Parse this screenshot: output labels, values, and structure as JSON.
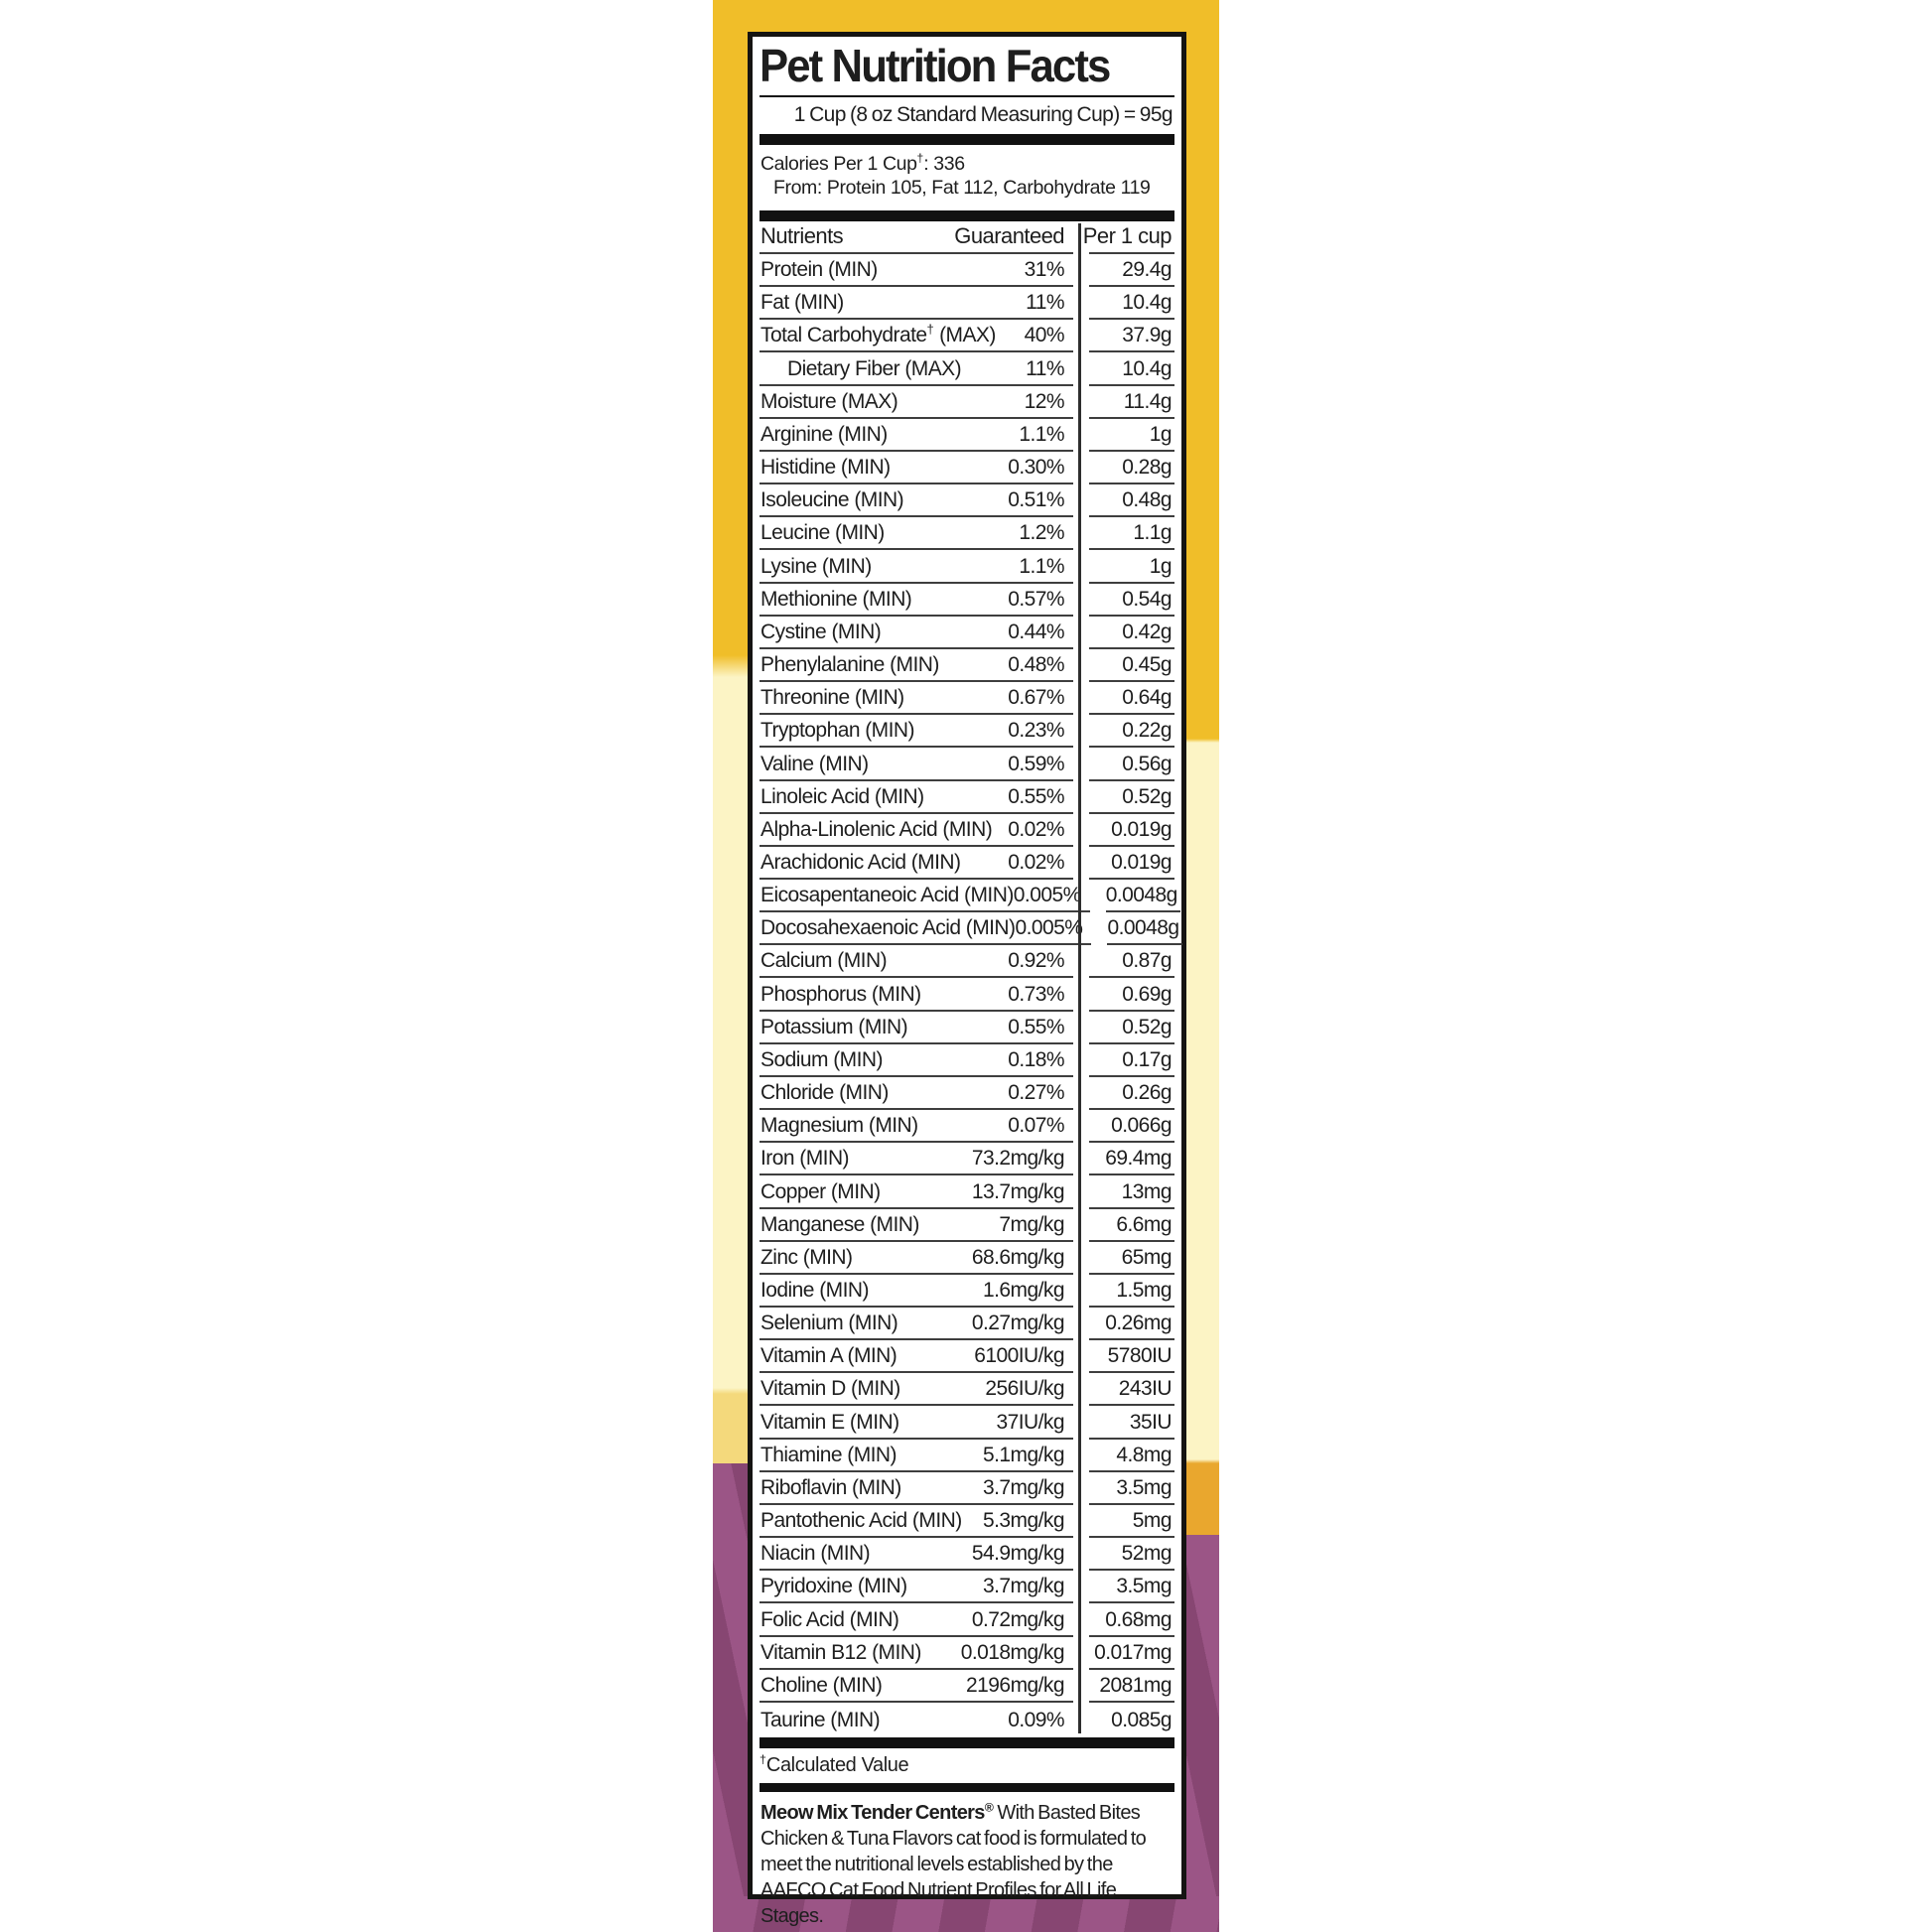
{
  "theme": {
    "yellow": "#F0BE29",
    "cream": "#FCF4C5",
    "goldsoft": "#F4D97C",
    "amber": "#E9A72E",
    "purple": "#9B5586",
    "purpledark": "#874672"
  },
  "label": {
    "title": "Pet Nutrition Facts",
    "serving_line": "1 Cup (8 oz Standard Measuring Cup) = 95g",
    "calories_line1": "Calories Per 1 Cup†: 336",
    "calories_line2": "From: Protein 105, Fat 112, Carbohydrate 119",
    "table": {
      "headers": {
        "nutrients": "Nutrients",
        "guaranteed": "Guaranteed",
        "per_cup": "Per 1 cup"
      },
      "rows": [
        {
          "name": "Protein (MIN)",
          "guaranteed": "31%",
          "per_cup": "29.4g",
          "indent": false
        },
        {
          "name": "Fat (MIN)",
          "guaranteed": "11%",
          "per_cup": "10.4g",
          "indent": false
        },
        {
          "name": "Total Carbohydrate† (MAX)",
          "guaranteed": "40%",
          "per_cup": "37.9g",
          "indent": false
        },
        {
          "name": "Dietary Fiber (MAX)",
          "guaranteed": "11%",
          "per_cup": "10.4g",
          "indent": true
        },
        {
          "name": "Moisture (MAX)",
          "guaranteed": "12%",
          "per_cup": "11.4g",
          "indent": false
        },
        {
          "name": "Arginine (MIN)",
          "guaranteed": "1.1%",
          "per_cup": "1g",
          "indent": false
        },
        {
          "name": "Histidine (MIN)",
          "guaranteed": "0.30%",
          "per_cup": "0.28g",
          "indent": false
        },
        {
          "name": "Isoleucine (MIN)",
          "guaranteed": "0.51%",
          "per_cup": "0.48g",
          "indent": false
        },
        {
          "name": "Leucine (MIN)",
          "guaranteed": "1.2%",
          "per_cup": "1.1g",
          "indent": false
        },
        {
          "name": "Lysine (MIN)",
          "guaranteed": "1.1%",
          "per_cup": "1g",
          "indent": false
        },
        {
          "name": "Methionine (MIN)",
          "guaranteed": "0.57%",
          "per_cup": "0.54g",
          "indent": false
        },
        {
          "name": "Cystine (MIN)",
          "guaranteed": "0.44%",
          "per_cup": "0.42g",
          "indent": false
        },
        {
          "name": "Phenylalanine (MIN)",
          "guaranteed": "0.48%",
          "per_cup": "0.45g",
          "indent": false
        },
        {
          "name": "Threonine (MIN)",
          "guaranteed": "0.67%",
          "per_cup": "0.64g",
          "indent": false
        },
        {
          "name": "Tryptophan (MIN)",
          "guaranteed": "0.23%",
          "per_cup": "0.22g",
          "indent": false
        },
        {
          "name": "Valine (MIN)",
          "guaranteed": "0.59%",
          "per_cup": "0.56g",
          "indent": false
        },
        {
          "name": "Linoleic Acid (MIN)",
          "guaranteed": "0.55%",
          "per_cup": "0.52g",
          "indent": false
        },
        {
          "name": "Alpha-Linolenic Acid (MIN)",
          "guaranteed": "0.02%",
          "per_cup": "0.019g",
          "indent": false
        },
        {
          "name": "Arachidonic Acid (MIN)",
          "guaranteed": "0.02%",
          "per_cup": "0.019g",
          "indent": false
        },
        {
          "name": "Eicosapentaneoic Acid (MIN)",
          "guaranteed": "0.005%",
          "per_cup": "0.0048g",
          "indent": false
        },
        {
          "name": "Docosahexaenoic Acid (MIN)",
          "guaranteed": "0.005%",
          "per_cup": "0.0048g",
          "indent": false
        },
        {
          "name": "Calcium (MIN)",
          "guaranteed": "0.92%",
          "per_cup": "0.87g",
          "indent": false
        },
        {
          "name": "Phosphorus (MIN)",
          "guaranteed": "0.73%",
          "per_cup": "0.69g",
          "indent": false
        },
        {
          "name": "Potassium (MIN)",
          "guaranteed": "0.55%",
          "per_cup": "0.52g",
          "indent": false
        },
        {
          "name": "Sodium (MIN)",
          "guaranteed": "0.18%",
          "per_cup": "0.17g",
          "indent": false
        },
        {
          "name": "Chloride (MIN)",
          "guaranteed": "0.27%",
          "per_cup": "0.26g",
          "indent": false
        },
        {
          "name": "Magnesium (MIN)",
          "guaranteed": "0.07%",
          "per_cup": "0.066g",
          "indent": false
        },
        {
          "name": "Iron (MIN)",
          "guaranteed": "73.2mg/kg",
          "per_cup": "69.4mg",
          "indent": false
        },
        {
          "name": "Copper (MIN)",
          "guaranteed": "13.7mg/kg",
          "per_cup": "13mg",
          "indent": false
        },
        {
          "name": "Manganese (MIN)",
          "guaranteed": "7mg/kg",
          "per_cup": "6.6mg",
          "indent": false
        },
        {
          "name": "Zinc (MIN)",
          "guaranteed": "68.6mg/kg",
          "per_cup": "65mg",
          "indent": false
        },
        {
          "name": "Iodine (MIN)",
          "guaranteed": "1.6mg/kg",
          "per_cup": "1.5mg",
          "indent": false
        },
        {
          "name": "Selenium (MIN)",
          "guaranteed": "0.27mg/kg",
          "per_cup": "0.26mg",
          "indent": false
        },
        {
          "name": "Vitamin A (MIN)",
          "guaranteed": "6100IU/kg",
          "per_cup": "5780IU",
          "indent": false
        },
        {
          "name": "Vitamin D (MIN)",
          "guaranteed": "256IU/kg",
          "per_cup": "243IU",
          "indent": false
        },
        {
          "name": "Vitamin E (MIN)",
          "guaranteed": "37IU/kg",
          "per_cup": "35IU",
          "indent": false
        },
        {
          "name": "Thiamine (MIN)",
          "guaranteed": "5.1mg/kg",
          "per_cup": "4.8mg",
          "indent": false
        },
        {
          "name": "Riboflavin (MIN)",
          "guaranteed": "3.7mg/kg",
          "per_cup": "3.5mg",
          "indent": false
        },
        {
          "name": "Pantothenic Acid (MIN)",
          "guaranteed": "5.3mg/kg",
          "per_cup": "5mg",
          "indent": false
        },
        {
          "name": "Niacin (MIN)",
          "guaranteed": "54.9mg/kg",
          "per_cup": "52mg",
          "indent": false
        },
        {
          "name": "Pyridoxine (MIN)",
          "guaranteed": "3.7mg/kg",
          "per_cup": "3.5mg",
          "indent": false
        },
        {
          "name": "Folic Acid (MIN)",
          "guaranteed": "0.72mg/kg",
          "per_cup": "0.68mg",
          "indent": false
        },
        {
          "name": "Vitamin B12 (MIN)",
          "guaranteed": "0.018mg/kg",
          "per_cup": "0.017mg",
          "indent": false
        },
        {
          "name": "Choline (MIN)",
          "guaranteed": "2196mg/kg",
          "per_cup": "2081mg",
          "indent": false
        },
        {
          "name": "Taurine (MIN)",
          "guaranteed": "0.09%",
          "per_cup": "0.085g",
          "indent": false
        }
      ]
    },
    "footnote": "†Calculated Value",
    "statement": {
      "brand": "Meow Mix Tender Centers®",
      "text": " With Basted Bites Chicken & Tuna Flavors cat food is formulated to meet the nutritional levels established by the AAFCO Cat Food Nutrient Profiles for All Life Stages."
    }
  }
}
